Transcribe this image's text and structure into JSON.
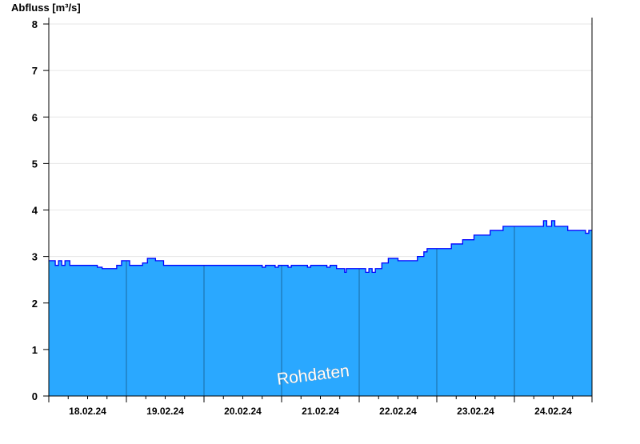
{
  "chart_data": {
    "type": "area",
    "ylabel": "Abfluss [m³/s]",
    "ylim": [
      0,
      8
    ],
    "yticks": [
      0,
      1,
      2,
      3,
      4,
      5,
      6,
      7,
      8
    ],
    "xlim": [
      "2024-02-18T00:00",
      "2024-02-25T00:00"
    ],
    "xtick_labels": [
      "18.02.24",
      "19.02.24",
      "20.02.24",
      "21.02.24",
      "22.02.24",
      "23.02.24",
      "24.02.24"
    ],
    "grid": true,
    "watermark": "Rohdaten",
    "fill_color": "#2aa8ff",
    "line_color": "#0000ff",
    "points": [
      [
        "2024-02-18T00:00",
        2.91
      ],
      [
        "2024-02-18T02:00",
        2.81
      ],
      [
        "2024-02-18T03:00",
        2.91
      ],
      [
        "2024-02-18T04:00",
        2.81
      ],
      [
        "2024-02-18T05:00",
        2.91
      ],
      [
        "2024-02-18T06:30",
        2.81
      ],
      [
        "2024-02-18T15:00",
        2.77
      ],
      [
        "2024-02-18T16:30",
        2.74
      ],
      [
        "2024-02-18T21:00",
        2.81
      ],
      [
        "2024-02-18T22:30",
        2.91
      ],
      [
        "2024-02-19T01:00",
        2.81
      ],
      [
        "2024-02-19T05:00",
        2.86
      ],
      [
        "2024-02-19T06:30",
        2.96
      ],
      [
        "2024-02-19T09:00",
        2.91
      ],
      [
        "2024-02-19T11:30",
        2.81
      ],
      [
        "2024-02-20T18:00",
        2.77
      ],
      [
        "2024-02-20T19:00",
        2.81
      ],
      [
        "2024-02-20T22:00",
        2.77
      ],
      [
        "2024-02-20T23:00",
        2.81
      ],
      [
        "2024-02-21T02:00",
        2.77
      ],
      [
        "2024-02-21T03:00",
        2.81
      ],
      [
        "2024-02-21T08:00",
        2.77
      ],
      [
        "2024-02-21T09:00",
        2.81
      ],
      [
        "2024-02-21T14:00",
        2.77
      ],
      [
        "2024-02-21T15:00",
        2.81
      ],
      [
        "2024-02-21T17:00",
        2.74
      ],
      [
        "2024-02-21T19:30",
        2.66
      ],
      [
        "2024-02-21T20:00",
        2.74
      ],
      [
        "2024-02-22T02:00",
        2.66
      ],
      [
        "2024-02-22T03:00",
        2.74
      ],
      [
        "2024-02-22T04:00",
        2.66
      ],
      [
        "2024-02-22T05:00",
        2.74
      ],
      [
        "2024-02-22T07:00",
        2.86
      ],
      [
        "2024-02-22T09:00",
        2.96
      ],
      [
        "2024-02-22T12:00",
        2.91
      ],
      [
        "2024-02-22T18:00",
        3.0
      ],
      [
        "2024-02-22T20:00",
        3.1
      ],
      [
        "2024-02-22T21:00",
        3.17
      ],
      [
        "2024-02-23T04:30",
        3.27
      ],
      [
        "2024-02-23T08:00",
        3.36
      ],
      [
        "2024-02-23T11:30",
        3.46
      ],
      [
        "2024-02-23T16:30",
        3.56
      ],
      [
        "2024-02-23T20:30",
        3.65
      ],
      [
        "2024-02-24T09:00",
        3.77
      ],
      [
        "2024-02-24T10:00",
        3.65
      ],
      [
        "2024-02-24T11:30",
        3.77
      ],
      [
        "2024-02-24T12:30",
        3.65
      ],
      [
        "2024-02-24T16:30",
        3.56
      ],
      [
        "2024-02-24T22:00",
        3.5
      ],
      [
        "2024-02-24T23:00",
        3.56
      ],
      [
        "2024-02-25T00:00",
        3.56
      ]
    ]
  }
}
